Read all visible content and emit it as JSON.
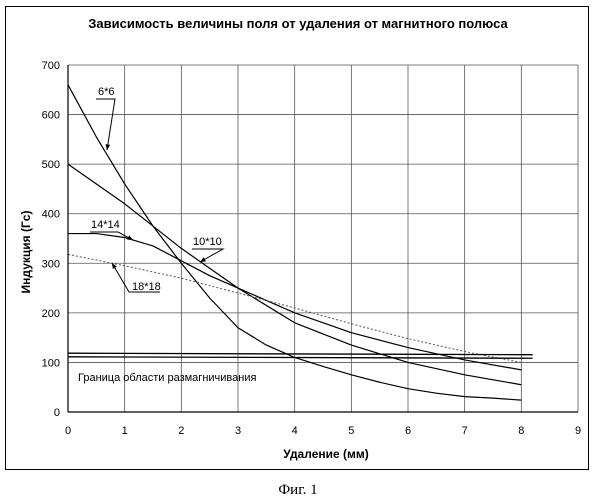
{
  "chart_data": {
    "type": "line",
    "title": "Зависимость величины поля от удаления от магнитного полюса",
    "xlabel": "Удаление (мм)",
    "ylabel": "Индукция (Гс)",
    "xlim": [
      0,
      9
    ],
    "ylim": [
      0,
      700
    ],
    "xticks": [
      0,
      1,
      2,
      3,
      4,
      5,
      6,
      7,
      8,
      9
    ],
    "yticks": [
      0,
      100,
      200,
      300,
      400,
      500,
      600,
      700
    ],
    "grid": true,
    "series": [
      {
        "name": "6*6",
        "style": "solid",
        "color": "#000000",
        "x": [
          0,
          0.5,
          1,
          1.5,
          2,
          2.5,
          3,
          3.5,
          4,
          4.5,
          5,
          5.5,
          6,
          6.5,
          7,
          7.5,
          8
        ],
        "y": [
          660,
          555,
          460,
          375,
          300,
          230,
          170,
          135,
          110,
          92,
          75,
          60,
          47,
          38,
          31,
          28,
          24
        ]
      },
      {
        "name": "10*10",
        "style": "solid",
        "color": "#000000",
        "x": [
          0,
          1,
          2,
          3,
          4,
          5,
          6,
          7,
          8
        ],
        "y": [
          500,
          420,
          330,
          250,
          180,
          135,
          100,
          75,
          55
        ]
      },
      {
        "name": "14*14",
        "style": "solid",
        "color": "#000000",
        "x": [
          0,
          0.5,
          1,
          1.5,
          2,
          2.5,
          3,
          3.5,
          4,
          5,
          6,
          7,
          8
        ],
        "y": [
          360,
          360,
          352,
          335,
          305,
          275,
          250,
          225,
          200,
          160,
          130,
          105,
          85
        ]
      },
      {
        "name": "18*18",
        "style": "dotted",
        "color": "#555555",
        "x": [
          0,
          1,
          2,
          3,
          4,
          5,
          6,
          7,
          8
        ],
        "y": [
          318,
          295,
          270,
          240,
          210,
          178,
          148,
          122,
          100
        ]
      },
      {
        "name": "",
        "style": "threshold",
        "color": "#000000",
        "x": [
          0,
          8.2
        ],
        "y": [
          115,
          112
        ]
      }
    ],
    "annotations": [
      {
        "text": "6*6",
        "x": 0.7,
        "y": 518
      },
      {
        "text": "10*10",
        "x": 2.4,
        "y": 297
      },
      {
        "text": "14*14",
        "x": 1.2,
        "y": 342
      },
      {
        "text": "18*18",
        "x": 1.3,
        "y": 292
      },
      {
        "text": "Граница области размагничивания",
        "x": 0.15,
        "y": 68
      }
    ]
  },
  "figure_caption": "Фиг. 1"
}
